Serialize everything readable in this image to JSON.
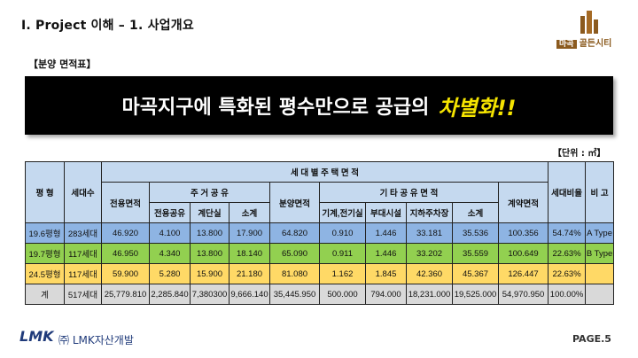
{
  "title": "Ⅰ. Project 이해 – 1. 사업개요",
  "logo": {
    "tag": "마곡",
    "name": "골든시티"
  },
  "section_label": "【분양 면적표】",
  "banner": {
    "main": "마곡지구에 특화된 평수만으로 공급의",
    "accent": "차별화!!"
  },
  "unit": "【단위 : ㎡】",
  "table": {
    "headers": {
      "type": "평 형",
      "households": "세대수",
      "unit_area_group": "세 대 별 주 택 면 적",
      "exclusive": "전용면적",
      "residential_common": "주 거 공 유",
      "res_exclusive_common": "전용공유",
      "res_stairs": "계단실",
      "res_subtotal": "소계",
      "sale_area": "분양면적",
      "other_common": "기 타 공 유 면 적",
      "mechanical": "기계,전기실",
      "amenities": "부대시설",
      "parking": "지하주차장",
      "other_subtotal": "소계",
      "contract_area": "계약면적",
      "ratio": "세대비율",
      "remarks": "비 고"
    },
    "rows": [
      [
        "19.6평형",
        "283세대",
        "46.920",
        "4.100",
        "13.800",
        "17.900",
        "64.820",
        "0.910",
        "1.446",
        "33.181",
        "35.536",
        "100.356",
        "54.74%",
        "A Type"
      ],
      [
        "19.7평형",
        "117세대",
        "46.950",
        "4.340",
        "13.800",
        "18.140",
        "65.090",
        "0.911",
        "1.446",
        "33.202",
        "35.559",
        "100.649",
        "22.63%",
        "B Type"
      ],
      [
        "24.5평형",
        "117세대",
        "59.900",
        "5.280",
        "15.900",
        "21.180",
        "81.080",
        "1.162",
        "1.845",
        "42.360",
        "45.367",
        "126.447",
        "22.63%",
        ""
      ]
    ],
    "total": [
      "계",
      "517세대",
      "25,779.810",
      "2,285.840",
      "7,380300",
      "9,666.140",
      "35,445.950",
      "500.000",
      "794.000",
      "18,231.000",
      "19,525.000",
      "54,970.950",
      "100.00%",
      ""
    ]
  },
  "footer": {
    "logo": "LMK",
    "company": "㈜ LMK자산개발",
    "page": "PAGE.5"
  }
}
